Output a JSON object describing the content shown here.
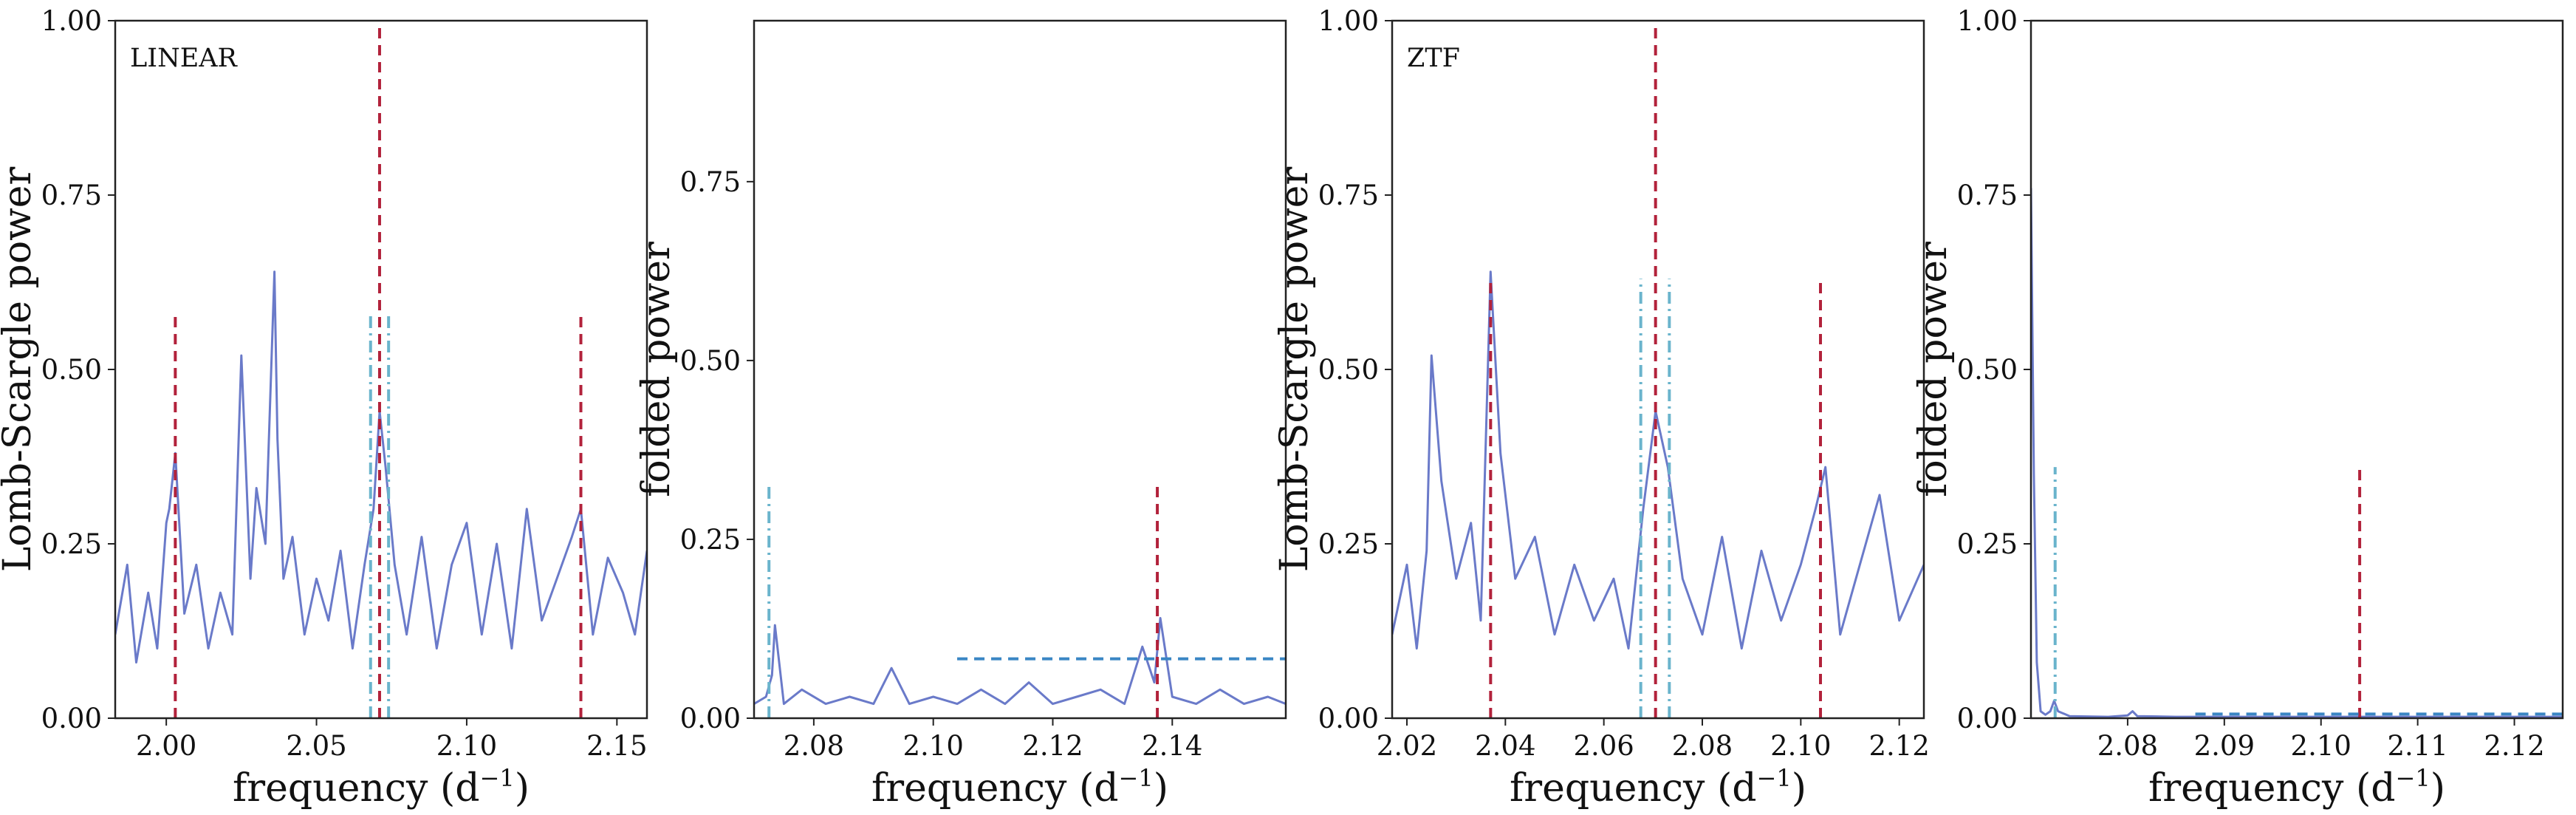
{
  "chart_data": [
    {
      "type": "line",
      "panel_tag": "LINEAR",
      "xlabel": "frequency",
      "xlabel_unit_base": "d",
      "xlabel_unit_exp": "−1",
      "ylabel": "Lomb-Scargle power",
      "xlim": [
        1.983,
        2.16
      ],
      "ylim": [
        0,
        1
      ],
      "xticks": [
        2.0,
        2.05,
        2.1,
        2.15
      ],
      "xtick_labels": [
        "2.00",
        "2.05",
        "2.10",
        "2.15"
      ],
      "yticks": [
        0,
        0.25,
        0.5,
        0.75,
        1.0
      ],
      "ytick_labels": [
        "0.00",
        "0.25",
        "0.50",
        "0.75",
        "1.00"
      ],
      "grid": false,
      "series": [
        {
          "line_color": "#6a7ac9",
          "x": [
            1.983,
            1.987,
            1.99,
            1.994,
            1.997,
            2.0,
            2.001,
            2.003,
            2.006,
            2.01,
            2.014,
            2.018,
            2.022,
            2.025,
            2.028,
            2.03,
            2.033,
            2.036,
            2.037,
            2.039,
            2.042,
            2.046,
            2.05,
            2.054,
            2.058,
            2.062,
            2.066,
            2.069,
            2.071,
            2.073,
            2.076,
            2.08,
            2.085,
            2.09,
            2.095,
            2.1,
            2.105,
            2.11,
            2.115,
            2.12,
            2.125,
            2.13,
            2.135,
            2.138,
            2.142,
            2.147,
            2.152,
            2.156,
            2.16
          ],
          "y": [
            0.12,
            0.22,
            0.08,
            0.18,
            0.1,
            0.28,
            0.3,
            0.38,
            0.15,
            0.22,
            0.1,
            0.18,
            0.12,
            0.52,
            0.2,
            0.33,
            0.25,
            0.64,
            0.4,
            0.2,
            0.26,
            0.12,
            0.2,
            0.14,
            0.24,
            0.1,
            0.22,
            0.3,
            0.44,
            0.36,
            0.22,
            0.12,
            0.26,
            0.1,
            0.22,
            0.28,
            0.12,
            0.25,
            0.1,
            0.3,
            0.14,
            0.2,
            0.26,
            0.3,
            0.12,
            0.23,
            0.18,
            0.12,
            0.24
          ]
        }
      ],
      "vlines": [
        {
          "x": 2.003,
          "ymax": 0.58,
          "style": "dashed",
          "color": "#b2223b"
        },
        {
          "x": 2.071,
          "ymax": 1.0,
          "style": "dashed",
          "color": "#b2223b"
        },
        {
          "x": 2.138,
          "ymax": 0.58,
          "style": "dashed",
          "color": "#b2223b"
        },
        {
          "x": 2.068,
          "ymax": 0.58,
          "style": "dashdot",
          "color": "#6ab4cc"
        },
        {
          "x": 2.074,
          "ymax": 0.58,
          "style": "dashdot",
          "color": "#6ab4cc"
        }
      ],
      "hlines": []
    },
    {
      "type": "line",
      "panel_tag": "",
      "xlabel": "frequency",
      "xlabel_unit_base": "d",
      "xlabel_unit_exp": "−1",
      "ylabel": "folded power",
      "xlim": [
        2.07,
        2.159
      ],
      "ylim": [
        0,
        0.975
      ],
      "xticks": [
        2.08,
        2.1,
        2.12,
        2.14
      ],
      "xtick_labels": [
        "2.08",
        "2.10",
        "2.12",
        "2.14"
      ],
      "yticks": [
        0,
        0.25,
        0.5,
        0.75
      ],
      "ytick_labels": [
        "0.00",
        "0.25",
        "0.50",
        "0.75"
      ],
      "grid": false,
      "series": [
        {
          "line_color": "#6a7ac9",
          "x": [
            2.07,
            2.072,
            2.073,
            2.0735,
            2.075,
            2.078,
            2.082,
            2.086,
            2.09,
            2.093,
            2.096,
            2.1,
            2.104,
            2.108,
            2.112,
            2.116,
            2.12,
            2.124,
            2.128,
            2.132,
            2.135,
            2.137,
            2.138,
            2.14,
            2.144,
            2.148,
            2.152,
            2.156,
            2.159
          ],
          "y": [
            0.02,
            0.03,
            0.06,
            0.13,
            0.02,
            0.04,
            0.02,
            0.03,
            0.02,
            0.07,
            0.02,
            0.03,
            0.02,
            0.04,
            0.02,
            0.05,
            0.02,
            0.03,
            0.04,
            0.02,
            0.1,
            0.05,
            0.14,
            0.03,
            0.02,
            0.04,
            0.02,
            0.03,
            0.02
          ]
        }
      ],
      "vlines": [
        {
          "x": 2.1375,
          "ymax": 0.33,
          "style": "dashed",
          "color": "#b2223b"
        },
        {
          "x": 2.0725,
          "ymax": 0.33,
          "style": "dashdot",
          "color": "#6ab4cc"
        }
      ],
      "hlines": [
        {
          "y": 0.083,
          "xmin": 2.104,
          "xmax": 2.159,
          "style": "dashed",
          "color": "#3a86c4"
        }
      ]
    },
    {
      "type": "line",
      "panel_tag": "ZTF",
      "xlabel": "frequency",
      "xlabel_unit_base": "d",
      "xlabel_unit_exp": "−1",
      "ylabel": "Lomb-Scargle power",
      "xlim": [
        2.017,
        2.125
      ],
      "ylim": [
        0,
        1
      ],
      "xticks": [
        2.02,
        2.04,
        2.06,
        2.08,
        2.1,
        2.12
      ],
      "xtick_labels": [
        "2.02",
        "2.04",
        "2.06",
        "2.08",
        "2.10",
        "2.12"
      ],
      "yticks": [
        0,
        0.25,
        0.5,
        0.75,
        1.0
      ],
      "ytick_labels": [
        "0.00",
        "0.25",
        "0.50",
        "0.75",
        "1.00"
      ],
      "grid": false,
      "series": [
        {
          "line_color": "#6a7ac9",
          "x": [
            2.017,
            2.02,
            2.022,
            2.024,
            2.025,
            2.027,
            2.03,
            2.033,
            2.035,
            2.037,
            2.039,
            2.042,
            2.046,
            2.05,
            2.054,
            2.058,
            2.062,
            2.065,
            2.068,
            2.0705,
            2.073,
            2.076,
            2.08,
            2.084,
            2.088,
            2.092,
            2.096,
            2.1,
            2.103,
            2.105,
            2.108,
            2.112,
            2.116,
            2.12,
            2.125
          ],
          "y": [
            0.12,
            0.22,
            0.1,
            0.24,
            0.52,
            0.34,
            0.2,
            0.28,
            0.14,
            0.64,
            0.38,
            0.2,
            0.26,
            0.12,
            0.22,
            0.14,
            0.2,
            0.1,
            0.3,
            0.44,
            0.36,
            0.2,
            0.12,
            0.26,
            0.1,
            0.24,
            0.14,
            0.22,
            0.3,
            0.36,
            0.12,
            0.22,
            0.32,
            0.14,
            0.22
          ]
        }
      ],
      "vlines": [
        {
          "x": 2.037,
          "ymax": 0.63,
          "style": "dashed",
          "color": "#b2223b"
        },
        {
          "x": 2.0705,
          "ymax": 1.0,
          "style": "dashed",
          "color": "#b2223b"
        },
        {
          "x": 2.104,
          "ymax": 0.63,
          "style": "dashed",
          "color": "#b2223b"
        },
        {
          "x": 2.0675,
          "ymax": 0.63,
          "style": "dashdot",
          "color": "#6ab4cc"
        },
        {
          "x": 2.0733,
          "ymax": 0.63,
          "style": "dashdot",
          "color": "#6ab4cc"
        }
      ],
      "hlines": []
    },
    {
      "type": "line",
      "panel_tag": "",
      "xlabel": "frequency",
      "xlabel_unit_base": "d",
      "xlabel_unit_exp": "−1",
      "ylabel": "folded power",
      "xlim": [
        2.07,
        2.125
      ],
      "ylim": [
        0,
        1
      ],
      "xticks": [
        2.08,
        2.09,
        2.1,
        2.11,
        2.12
      ],
      "xtick_labels": [
        "2.08",
        "2.09",
        "2.10",
        "2.11",
        "2.12"
      ],
      "yticks": [
        0,
        0.25,
        0.5,
        0.75,
        1.0
      ],
      "ytick_labels": [
        "0.00",
        "0.25",
        "0.50",
        "0.75",
        "1.00"
      ],
      "grid": false,
      "series": [
        {
          "line_color": "#6a7ac9",
          "x": [
            2.07,
            2.0703,
            2.0706,
            2.071,
            2.0715,
            2.072,
            2.0724,
            2.0728,
            2.074,
            2.078,
            2.08,
            2.0805,
            2.081,
            2.085,
            2.09,
            2.095,
            2.1,
            2.105,
            2.11,
            2.115,
            2.12,
            2.125
          ],
          "y": [
            0.76,
            0.35,
            0.08,
            0.01,
            0.005,
            0.01,
            0.025,
            0.01,
            0.003,
            0.002,
            0.004,
            0.01,
            0.003,
            0.002,
            0.002,
            0.002,
            0.002,
            0.002,
            0.002,
            0.002,
            0.002,
            0.002
          ]
        }
      ],
      "vlines": [
        {
          "x": 2.104,
          "ymax": 0.36,
          "style": "dashed",
          "color": "#b2223b"
        },
        {
          "x": 2.0725,
          "ymax": 0.36,
          "style": "dashdot",
          "color": "#6ab4cc"
        }
      ],
      "hlines": [
        {
          "y": 0.006,
          "xmin": 2.087,
          "xmax": 2.125,
          "style": "dashed",
          "color": "#3a86c4"
        }
      ]
    }
  ]
}
